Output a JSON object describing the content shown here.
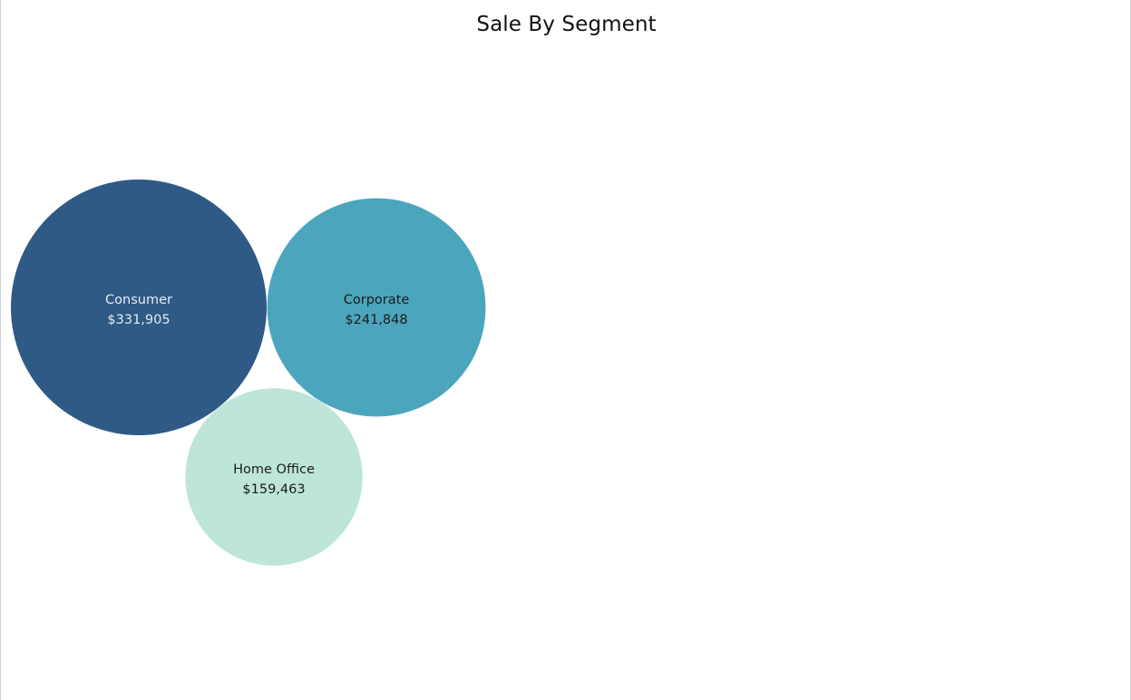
{
  "chart_data": {
    "type": "bubble",
    "title": "Sale By Segment",
    "series": [
      {
        "category": "Consumer",
        "value": 331905,
        "value_label": "$331,905",
        "color": "#2e5a85",
        "label_color": "#e6ecf2"
      },
      {
        "category": "Corporate",
        "value": 241848,
        "value_label": "$241,848",
        "color": "#4ba6bd",
        "label_color": "#1b1b1b"
      },
      {
        "category": "Home Office",
        "value": 159463,
        "value_label": "$159,463",
        "color": "#bde5da",
        "label_color": "#1b1b1b"
      }
    ]
  }
}
